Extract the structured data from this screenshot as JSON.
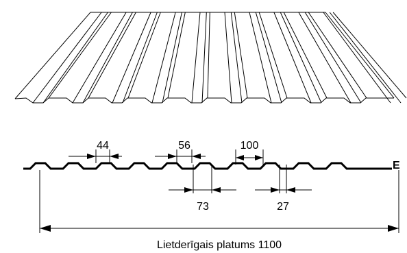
{
  "drawing": {
    "profile_name": "E",
    "dimensions": {
      "rib_top": "44",
      "rib_mid": "56",
      "pitch": "100",
      "rib_bottom": "73",
      "valley": "27"
    },
    "effective_width_label": "Lietderīgais platums 1100"
  },
  "colors": {
    "line": "#000000",
    "background": "#ffffff"
  }
}
